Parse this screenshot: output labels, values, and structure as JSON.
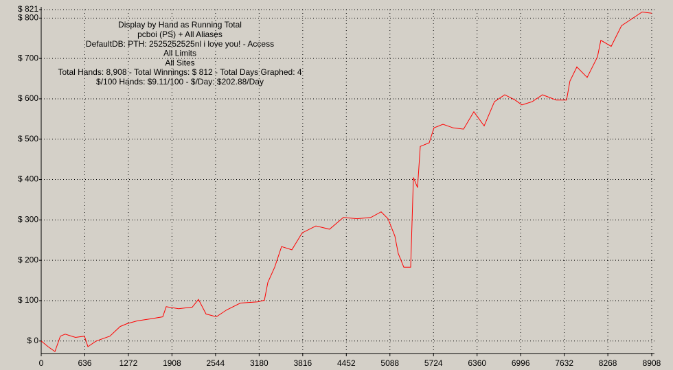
{
  "chart_data": {
    "type": "line",
    "annotations": [
      "Display by Hand as Running Total",
      "pcboi (PS) + All Aliases",
      "DefaultDB: PTH: 2525252525nl i love you! - Access",
      "All Limits",
      "All Sites",
      "Total Hands: 8,908 - Total Winnings: $ 812 - Total Days Graphed: 4",
      "$/100 Hands: $9.11/100 - $/Day: $202.88/Day"
    ],
    "xlim": [
      0,
      8908
    ],
    "xticks": [
      0,
      636,
      1272,
      1908,
      2544,
      3180,
      3816,
      4452,
      5088,
      5724,
      6360,
      6996,
      7632,
      8268,
      8908
    ],
    "ylim": [
      -31,
      821
    ],
    "yticks": [
      {
        "value": 0,
        "label": "$ 0"
      },
      {
        "value": 100,
        "label": "$ 100"
      },
      {
        "value": 200,
        "label": "$ 200"
      },
      {
        "value": 300,
        "label": "$ 300"
      },
      {
        "value": 400,
        "label": "$ 400"
      },
      {
        "value": 500,
        "label": "$ 500"
      },
      {
        "value": 600,
        "label": "$ 600"
      },
      {
        "value": 700,
        "label": "$ 700"
      },
      {
        "value": 800,
        "label": "$ 800"
      },
      {
        "value": 821,
        "label": "$ 821"
      }
    ],
    "grid": true,
    "series": [
      {
        "color": "#ff0000",
        "x": [
          0,
          100,
          200,
          280,
          350,
          500,
          631,
          681,
          802,
          1002,
          1152,
          1253,
          1403,
          1603,
          1774,
          1824,
          2004,
          2204,
          2295,
          2405,
          2555,
          2705,
          2906,
          3156,
          3257,
          3307,
          3407,
          3507,
          3657,
          3808,
          4008,
          4208,
          4409,
          4609,
          4810,
          4960,
          5060,
          5160,
          5210,
          5291,
          5391,
          5431,
          5491,
          5531,
          5661,
          5731,
          5862,
          6012,
          6162,
          6313,
          6463,
          6613,
          6764,
          6914,
          7014,
          7164,
          7315,
          7515,
          7665,
          7715,
          7816,
          7966,
          8116,
          8166,
          8317,
          8467,
          8617,
          8768,
          8908
        ],
        "values": [
          0,
          -14,
          -26,
          12,
          17,
          9,
          12,
          -14,
          0,
          12,
          36,
          43,
          50,
          55,
          60,
          85,
          80,
          84,
          103,
          67,
          60,
          77,
          94,
          97,
          101,
          145,
          183,
          234,
          226,
          268,
          285,
          277,
          306,
          303,
          306,
          320,
          303,
          260,
          217,
          183,
          183,
          405,
          380,
          482,
          491,
          528,
          537,
          528,
          525,
          568,
          533,
          593,
          610,
          597,
          585,
          593,
          610,
          597,
          597,
          644,
          679,
          653,
          704,
          745,
          730,
          781,
          798,
          815,
          812
        ]
      }
    ]
  }
}
